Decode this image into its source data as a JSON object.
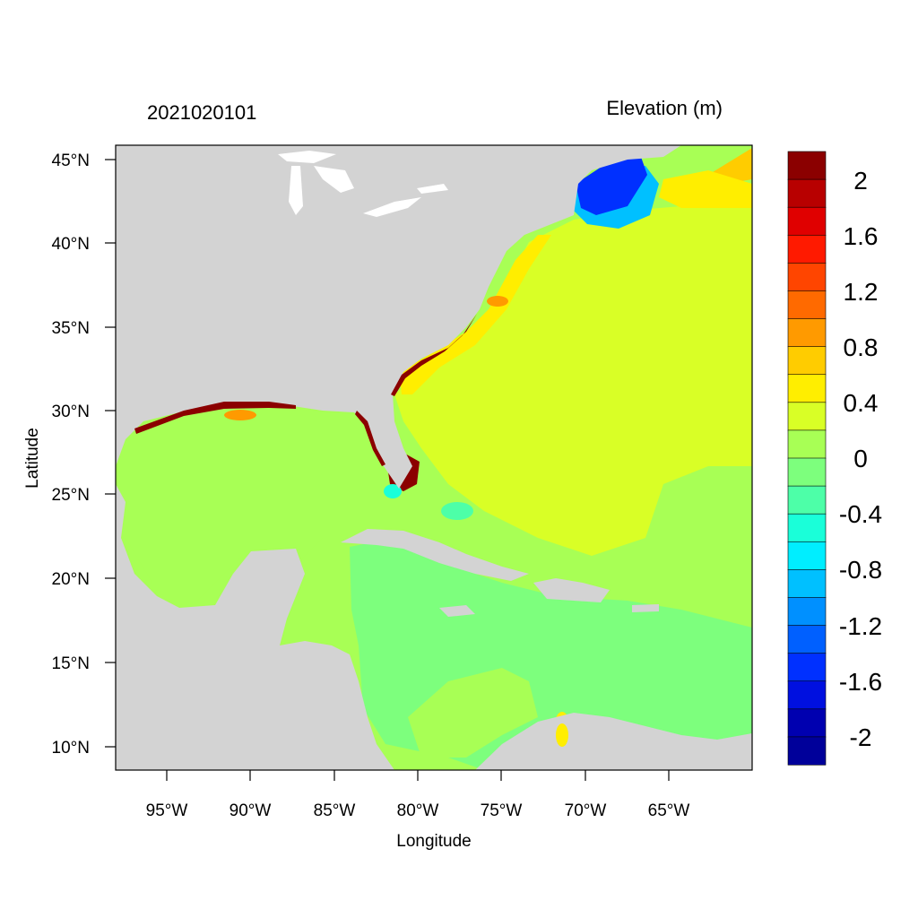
{
  "header": {
    "timestamp": "2021020101",
    "variable": "Elevation (m)"
  },
  "axes": {
    "xlabel": "Longitude",
    "ylabel": "Latitude",
    "xticks": [
      "95°W",
      "90°W",
      "85°W",
      "80°W",
      "75°W",
      "70°W",
      "65°W"
    ],
    "yticks": [
      "45°N",
      "40°N",
      "35°N",
      "30°N",
      "25°N",
      "20°N",
      "15°N",
      "10°N"
    ]
  },
  "colorbar": {
    "labels": [
      "2",
      "1.6",
      "1.2",
      "0.8",
      "0.4",
      "0",
      "-0.4",
      "-0.8",
      "-1.2",
      "-1.6",
      "-2"
    ],
    "colors": [
      "#8b0000",
      "#b80000",
      "#e00000",
      "#ff1a00",
      "#ff4500",
      "#ff6a00",
      "#ff9a00",
      "#ffcc00",
      "#ffee00",
      "#d9ff26",
      "#a8ff55",
      "#7dff7d",
      "#4dffa8",
      "#1affd9",
      "#00eeff",
      "#00c0ff",
      "#0090ff",
      "#0060ff",
      "#0030ff",
      "#0010e0",
      "#0000b0",
      "#00009a"
    ]
  },
  "map": {
    "land_color": "#d3d3d3",
    "lake_color": "#ffffff"
  }
}
